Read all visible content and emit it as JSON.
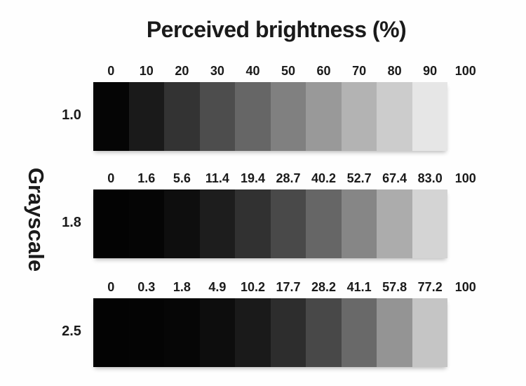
{
  "chart_data": {
    "type": "heatmap",
    "title": "Perceived brightness (%)",
    "ylabel": "Grayscale",
    "xlabel": "",
    "background_color": "#fefefe",
    "label_color": "#1a1a1a",
    "rows": [
      {
        "gamma": "1.0",
        "labels": [
          "0",
          "10",
          "20",
          "30",
          "40",
          "50",
          "60",
          "70",
          "80",
          "90",
          "100"
        ],
        "values": [
          0,
          10,
          20,
          30,
          40,
          50,
          60,
          70,
          80,
          90,
          100
        ],
        "segment_colors": [
          "#050505",
          "#1a1a1a",
          "#333333",
          "#4d4d4d",
          "#666666",
          "#808080",
          "#999999",
          "#b3b3b3",
          "#cccccc",
          "#e6e6e6"
        ]
      },
      {
        "gamma": "1.8",
        "labels": [
          "0",
          "1.6",
          "5.6",
          "11.4",
          "19.4",
          "28.7",
          "40.2",
          "52.7",
          "67.4",
          "83.0",
          "100"
        ],
        "values": [
          0,
          1.6,
          5.6,
          11.4,
          19.4,
          28.7,
          40.2,
          52.7,
          67.4,
          83.0,
          100
        ],
        "segment_colors": [
          "#030303",
          "#050505",
          "#0e0e0e",
          "#1d1d1d",
          "#313131",
          "#494949",
          "#666666",
          "#868686",
          "#acacac",
          "#d4d4d4"
        ]
      },
      {
        "gamma": "2.5",
        "labels": [
          "0",
          "0.3",
          "1.8",
          "4.9",
          "10.2",
          "17.7",
          "28.2",
          "41.1",
          "57.8",
          "77.2",
          "100"
        ],
        "values": [
          0,
          0.3,
          1.8,
          4.9,
          10.2,
          17.7,
          28.2,
          41.1,
          57.8,
          77.2,
          100
        ],
        "segment_colors": [
          "#030303",
          "#040404",
          "#060606",
          "#0d0d0d",
          "#1a1a1a",
          "#2d2d2d",
          "#484848",
          "#696969",
          "#949494",
          "#c5c5c5"
        ]
      }
    ]
  }
}
